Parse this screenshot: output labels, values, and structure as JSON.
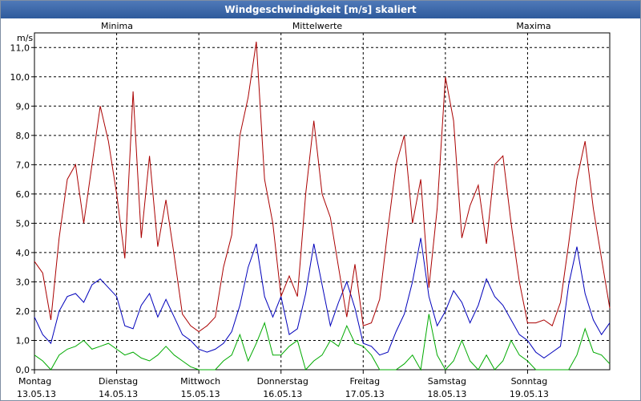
{
  "window": {
    "title": "Windgeschwindigkeit [m/s] skaliert"
  },
  "chart_data": {
    "type": "line",
    "title": "Windgeschwindigkeit [m/s] skaliert",
    "ylabel": "m/s",
    "ylim": [
      0,
      11.5
    ],
    "grid": true,
    "yticks": [
      "0,0",
      "1,0",
      "2,0",
      "3,0",
      "4,0",
      "5,0",
      "6,0",
      "7,0",
      "8,0",
      "9,0",
      "10,0",
      "11,0"
    ],
    "days": [
      {
        "name": "Montag",
        "date": "13.05.13"
      },
      {
        "name": "Dienstag",
        "date": "14.05.13"
      },
      {
        "name": "Mittwoch",
        "date": "15.05.13"
      },
      {
        "name": "Donnerstag",
        "date": "16.05.13"
      },
      {
        "name": "Freitag",
        "date": "17.05.13"
      },
      {
        "name": "Samstag",
        "date": "18.05.13"
      },
      {
        "name": "Sonntag",
        "date": "19.05.13"
      }
    ],
    "x_unit": "day (0 = Montag 13.05.13 00:00)",
    "xlim": [
      0,
      7
    ],
    "series": [
      {
        "name": "Minima",
        "color": "#00aa00",
        "x": [
          0,
          0.1,
          0.2,
          0.3,
          0.4,
          0.5,
          0.6,
          0.7,
          0.8,
          0.9,
          1.0,
          1.1,
          1.2,
          1.3,
          1.4,
          1.5,
          1.6,
          1.7,
          1.8,
          1.9,
          2.0,
          2.1,
          2.2,
          2.3,
          2.4,
          2.5,
          2.6,
          2.7,
          2.8,
          2.9,
          3.0,
          3.1,
          3.2,
          3.3,
          3.4,
          3.5,
          3.6,
          3.7,
          3.8,
          3.9,
          4.0,
          4.1,
          4.2,
          4.3,
          4.4,
          4.5,
          4.6,
          4.7,
          4.8,
          4.9,
          5.0,
          5.1,
          5.2,
          5.3,
          5.4,
          5.5,
          5.6,
          5.7,
          5.8,
          5.9,
          6.0,
          6.1,
          6.2,
          6.3,
          6.4,
          6.5,
          6.6,
          6.7,
          6.8,
          6.9,
          7.0
        ],
        "values": [
          0.5,
          0.3,
          0.0,
          0.5,
          0.7,
          0.8,
          1.0,
          0.7,
          0.8,
          0.9,
          0.7,
          0.5,
          0.6,
          0.4,
          0.3,
          0.5,
          0.8,
          0.5,
          0.3,
          0.1,
          0.0,
          0.0,
          0.0,
          0.3,
          0.5,
          1.2,
          0.3,
          0.9,
          1.6,
          0.5,
          0.5,
          0.8,
          1.0,
          0.0,
          0.3,
          0.5,
          1.0,
          0.8,
          1.5,
          0.9,
          0.8,
          0.5,
          0.0,
          0.0,
          0.0,
          0.2,
          0.5,
          0.0,
          1.9,
          0.5,
          0.0,
          0.3,
          1.0,
          0.3,
          0.0,
          0.5,
          0.0,
          0.3,
          1.0,
          0.5,
          0.3,
          0.0,
          0.0,
          0.0,
          0.0,
          0.0,
          0.5,
          1.4,
          0.6,
          0.5,
          0.2
        ]
      },
      {
        "name": "Mittelwerte",
        "color": "#0000bb",
        "x": [
          0,
          0.1,
          0.2,
          0.3,
          0.4,
          0.5,
          0.6,
          0.7,
          0.8,
          0.9,
          1.0,
          1.1,
          1.2,
          1.3,
          1.4,
          1.5,
          1.6,
          1.7,
          1.8,
          1.9,
          2.0,
          2.1,
          2.2,
          2.3,
          2.4,
          2.5,
          2.6,
          2.7,
          2.8,
          2.9,
          3.0,
          3.1,
          3.2,
          3.3,
          3.4,
          3.5,
          3.6,
          3.7,
          3.8,
          3.9,
          4.0,
          4.1,
          4.2,
          4.3,
          4.4,
          4.5,
          4.6,
          4.7,
          4.8,
          4.9,
          5.0,
          5.1,
          5.2,
          5.3,
          5.4,
          5.5,
          5.6,
          5.7,
          5.8,
          5.9,
          6.0,
          6.1,
          6.2,
          6.3,
          6.4,
          6.5,
          6.6,
          6.7,
          6.8,
          6.9,
          7.0
        ],
        "values": [
          1.8,
          1.2,
          0.9,
          2.0,
          2.5,
          2.6,
          2.3,
          2.9,
          3.1,
          2.8,
          2.5,
          1.5,
          1.4,
          2.2,
          2.6,
          1.8,
          2.4,
          1.8,
          1.2,
          1.0,
          0.7,
          0.6,
          0.7,
          0.9,
          1.3,
          2.2,
          3.5,
          4.3,
          2.5,
          1.8,
          2.5,
          1.2,
          1.4,
          2.6,
          4.3,
          2.9,
          1.5,
          2.3,
          3.0,
          2.1,
          0.9,
          0.8,
          0.5,
          0.6,
          1.3,
          1.9,
          3.0,
          4.5,
          2.5,
          1.5,
          2.0,
          2.7,
          2.3,
          1.6,
          2.2,
          3.1,
          2.5,
          2.2,
          1.7,
          1.2,
          1.0,
          0.6,
          0.4,
          0.6,
          0.8,
          2.9,
          4.2,
          2.6,
          1.7,
          1.2,
          1.6
        ]
      },
      {
        "name": "Maxima",
        "color": "#aa0000",
        "x": [
          0,
          0.1,
          0.2,
          0.3,
          0.4,
          0.5,
          0.6,
          0.7,
          0.8,
          0.9,
          1.0,
          1.1,
          1.2,
          1.3,
          1.4,
          1.5,
          1.6,
          1.7,
          1.8,
          1.9,
          2.0,
          2.1,
          2.2,
          2.3,
          2.4,
          2.5,
          2.6,
          2.7,
          2.8,
          2.9,
          3.0,
          3.1,
          3.2,
          3.3,
          3.4,
          3.5,
          3.6,
          3.7,
          3.8,
          3.9,
          4.0,
          4.1,
          4.2,
          4.3,
          4.4,
          4.5,
          4.6,
          4.7,
          4.8,
          4.9,
          5.0,
          5.1,
          5.2,
          5.3,
          5.4,
          5.5,
          5.6,
          5.7,
          5.8,
          5.9,
          6.0,
          6.1,
          6.2,
          6.3,
          6.4,
          6.5,
          6.6,
          6.7,
          6.8,
          6.9,
          7.0
        ],
        "values": [
          3.7,
          3.3,
          1.7,
          4.5,
          6.5,
          7.0,
          5.0,
          7.0,
          9.0,
          7.8,
          6.0,
          3.8,
          9.5,
          4.5,
          7.3,
          4.2,
          5.8,
          3.9,
          1.9,
          1.5,
          1.3,
          1.5,
          1.8,
          3.5,
          4.6,
          8.0,
          9.3,
          11.2,
          6.5,
          5.0,
          2.5,
          3.2,
          2.5,
          6.0,
          8.5,
          6.0,
          5.2,
          3.5,
          1.8,
          3.6,
          1.5,
          1.6,
          2.4,
          4.8,
          7.0,
          8.0,
          5.0,
          6.5,
          2.8,
          5.5,
          10.0,
          8.5,
          4.5,
          5.6,
          6.3,
          4.3,
          7.0,
          7.3,
          5.0,
          3.0,
          1.6,
          1.6,
          1.7,
          1.5,
          2.3,
          4.3,
          6.5,
          7.8,
          5.5,
          3.8,
          2.1
        ]
      }
    ]
  }
}
